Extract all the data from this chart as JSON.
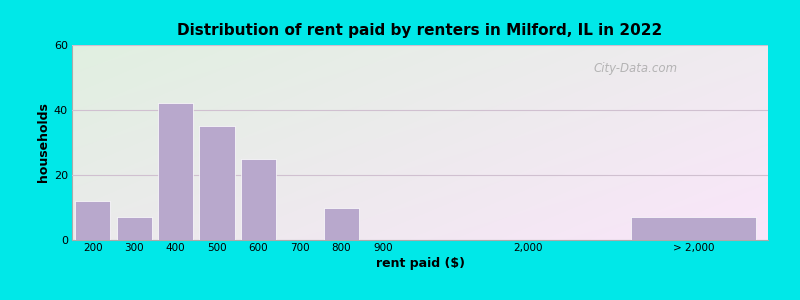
{
  "title": "Distribution of rent paid by renters in Milford, IL in 2022",
  "xlabel": "rent paid ($)",
  "ylabel": "households",
  "bar_color": "#b8a8cc",
  "background_outer": "#00e8e8",
  "yticks": [
    0,
    20,
    40,
    60
  ],
  "ylim": [
    0,
    60
  ],
  "watermark": "City-Data.com",
  "bars_left": {
    "labels": [
      "200",
      "300",
      "400",
      "500",
      "600",
      "700",
      "800",
      "900"
    ],
    "x_vals": [
      200,
      300,
      400,
      500,
      600,
      700,
      800,
      900
    ],
    "values": [
      12,
      7,
      42,
      35,
      25,
      0,
      10,
      0
    ]
  },
  "bar_2000_label": "2,000",
  "bar_gt2000_label": "> 2,000",
  "bar_gt2000_value": 7,
  "grid_color": "#d0c0d0",
  "spine_color": "#aaaaaa"
}
